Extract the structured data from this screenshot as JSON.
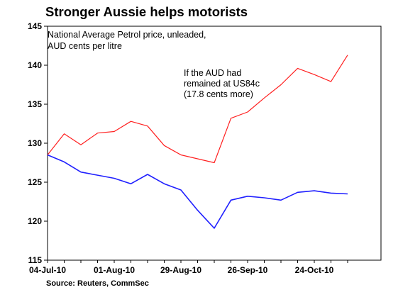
{
  "page": {
    "title": "Stronger Aussie helps motorists",
    "source": "Source: Reuters, CommSec"
  },
  "chart_data": {
    "type": "line",
    "title": "Stronger Aussie helps motorists",
    "subtitle_lines": [
      "National Average Petrol price, unleaded,",
      "AUD cents per litre"
    ],
    "xlabel": "",
    "ylabel": "",
    "ylim": [
      115,
      145
    ],
    "yticks": [
      115,
      120,
      125,
      130,
      135,
      140,
      145
    ],
    "x": [
      "2010-07-04",
      "2010-07-11",
      "2010-07-18",
      "2010-07-25",
      "2010-08-01",
      "2010-08-08",
      "2010-08-15",
      "2010-08-22",
      "2010-08-29",
      "2010-09-05",
      "2010-09-12",
      "2010-09-19",
      "2010-09-26",
      "2010-10-03",
      "2010-10-10",
      "2010-10-17",
      "2010-10-24",
      "2010-10-31",
      "2010-11-07"
    ],
    "xticks": [
      {
        "date": "2010-07-04",
        "label": "04-Jul-10"
      },
      {
        "date": "2010-08-01",
        "label": "01-Aug-10"
      },
      {
        "date": "2010-08-29",
        "label": "29-Aug-10"
      },
      {
        "date": "2010-09-26",
        "label": "26-Sep-10"
      },
      {
        "date": "2010-10-24",
        "label": "24-Oct-10"
      }
    ],
    "xlim": [
      "2010-07-04",
      "2010-11-21"
    ],
    "series": [
      {
        "color": "#ff2020",
        "values": [
          128.5,
          131.2,
          129.8,
          131.3,
          131.5,
          132.8,
          132.2,
          129.7,
          128.5,
          128.0,
          127.5,
          133.2,
          134.0,
          135.8,
          137.5,
          139.6,
          138.8,
          137.9,
          141.3
        ]
      },
      {
        "color": "#2020ff",
        "values": [
          128.5,
          127.6,
          126.3,
          125.9,
          125.5,
          124.8,
          126.0,
          124.8,
          124.0,
          121.4,
          119.1,
          122.7,
          123.2,
          123.0,
          122.7,
          123.7,
          123.9,
          123.6,
          123.5
        ]
      }
    ],
    "annotations": [
      {
        "lines": [
          "If the AUD had",
          "remained at US84c",
          "(17.8 cents more)"
        ]
      }
    ],
    "grid": false,
    "legend": "none"
  }
}
